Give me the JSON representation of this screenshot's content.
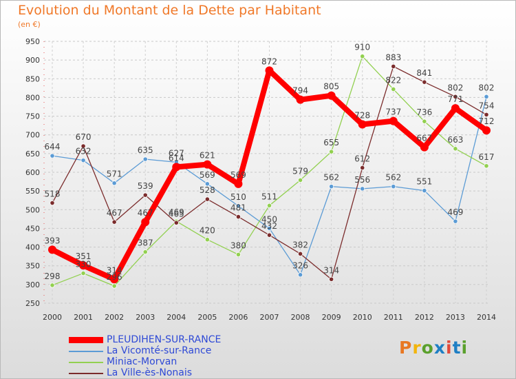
{
  "chart_data": {
    "type": "line",
    "title": "Evolution du Montant de la Dette par Habitant",
    "subtitle": "(en €)",
    "x": [
      "2000",
      "2001",
      "2002",
      "2003",
      "2004",
      "2005",
      "2006",
      "2007",
      "2008",
      "2009",
      "2010",
      "2011",
      "2012",
      "2013",
      "2014"
    ],
    "ylim": [
      250,
      950
    ],
    "yticks": [
      250,
      300,
      350,
      400,
      450,
      500,
      550,
      600,
      650,
      700,
      750,
      800,
      850,
      900,
      950
    ],
    "grid": true,
    "legend_position": "bottom-left",
    "series": [
      {
        "name": "PLEUDIHEN-SUR-RANCE",
        "color": "#ff0000",
        "values": [
          393,
          351,
          314,
          467,
          614,
          621,
          569,
          872,
          794,
          805,
          728,
          737,
          667,
          771,
          712
        ]
      },
      {
        "name": "La Vicomté-sur-Rance",
        "color": "#5b9bd5",
        "values": [
          644,
          632,
          571,
          635,
          627,
          569,
          510,
          450,
          326,
          562,
          556,
          562,
          551,
          469,
          802
        ]
      },
      {
        "name": "Miniac-Morvan",
        "color": "#92d050",
        "values": [
          298,
          330,
          296,
          387,
          469,
          420,
          380,
          511,
          579,
          655,
          910,
          822,
          736,
          663,
          617
        ]
      },
      {
        "name": "La Ville-ès-Nonais",
        "color": "#7b2c2c",
        "values": [
          518,
          670,
          467,
          539,
          465,
          528,
          481,
          432,
          382,
          314,
          612,
          883,
          841,
          802,
          754
        ]
      }
    ]
  },
  "logo": {
    "text": "Proxiti",
    "colors": [
      "#e87722",
      "#f2b50c",
      "#5aa02c",
      "#1f7fc4",
      "#e24a3b",
      "#1f7fc4",
      "#5aa02c"
    ]
  }
}
